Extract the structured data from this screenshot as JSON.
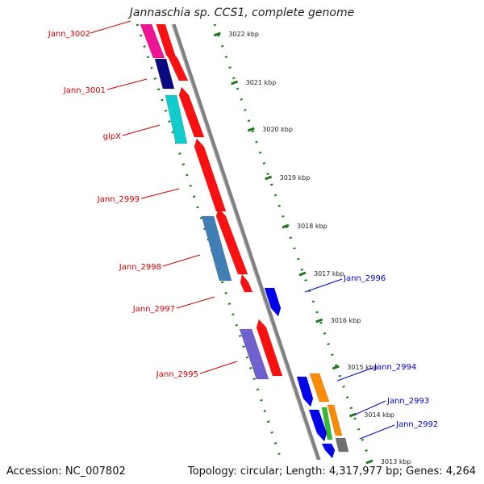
{
  "title": "Jannaschia sp. CCS1, complete genome",
  "accession": "Accession: NC_007802",
  "summary": "Topology: circular; Length: 4,317,977 bp; Genes: 4,264",
  "ruler_labels": [
    "3022 kbp",
    "3021 kbp",
    "3020 kbp",
    "3019 kbp",
    "3018 kbp",
    "3017 kbp",
    "3016 kbp",
    "3015 kbp",
    "3014 kbp",
    "3013 kbp"
  ],
  "labels_left": [
    "Jann_3002",
    "Jann_3001",
    "glpX",
    "Jann_2999",
    "Jann_2998",
    "Jann_2997",
    "Jann_2995"
  ],
  "labels_right": [
    "Jann_2996",
    "Jann_2994",
    "Jann_2993",
    "Jann_2992"
  ],
  "colors": {
    "forward_label": "#cc0000",
    "reverse_label": "#0000cc",
    "backbone": "#888888",
    "ruler": "#1a7a1a",
    "cds_red": "#ff0000",
    "cds_blue": "#0000ee"
  }
}
